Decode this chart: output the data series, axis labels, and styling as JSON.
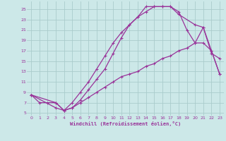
{
  "xlabel": "Windchill (Refroidissement éolien,°C)",
  "bg_color": "#cce8e8",
  "grid_color": "#aacccc",
  "line_color": "#993399",
  "xlim": [
    -0.5,
    23.5
  ],
  "ylim": [
    4.5,
    26.5
  ],
  "xticks": [
    0,
    1,
    2,
    3,
    4,
    5,
    6,
    7,
    8,
    9,
    10,
    11,
    12,
    13,
    14,
    15,
    16,
    17,
    18,
    19,
    20,
    21,
    22,
    23
  ],
  "yticks": [
    5,
    7,
    9,
    11,
    13,
    15,
    17,
    19,
    21,
    23,
    25
  ],
  "line1_x": [
    0,
    1,
    2,
    3,
    4,
    5,
    6,
    7,
    8,
    9,
    10,
    11,
    12,
    13,
    14,
    15,
    16,
    17,
    18,
    19,
    20,
    21,
    22,
    23
  ],
  "line1_y": [
    8.5,
    7.0,
    7.0,
    7.0,
    5.5,
    7.0,
    9.0,
    11.0,
    13.5,
    16.0,
    18.5,
    20.5,
    22.0,
    23.5,
    25.5,
    25.5,
    25.5,
    25.5,
    24.5,
    21.0,
    18.5,
    21.5,
    16.5,
    15.5
  ],
  "line2_x": [
    0,
    3,
    4,
    5,
    6,
    7,
    8,
    9,
    10,
    11,
    12,
    13,
    14,
    15,
    16,
    17,
    18,
    20,
    21,
    22,
    23
  ],
  "line2_y": [
    8.5,
    7.0,
    5.5,
    6.0,
    7.5,
    9.5,
    11.5,
    13.5,
    16.5,
    19.5,
    22.0,
    23.5,
    24.5,
    25.5,
    25.5,
    25.5,
    24.0,
    22.0,
    21.5,
    17.0,
    12.5
  ],
  "line3_x": [
    0,
    3,
    4,
    5,
    6,
    7,
    8,
    9,
    10,
    11,
    12,
    13,
    14,
    15,
    16,
    17,
    18,
    19,
    20,
    21,
    22,
    23
  ],
  "line3_y": [
    8.5,
    6.0,
    5.5,
    6.0,
    7.0,
    8.0,
    9.0,
    10.0,
    11.0,
    12.0,
    12.5,
    13.0,
    14.0,
    14.5,
    15.5,
    16.0,
    17.0,
    17.5,
    18.5,
    18.5,
    17.0,
    12.5
  ]
}
